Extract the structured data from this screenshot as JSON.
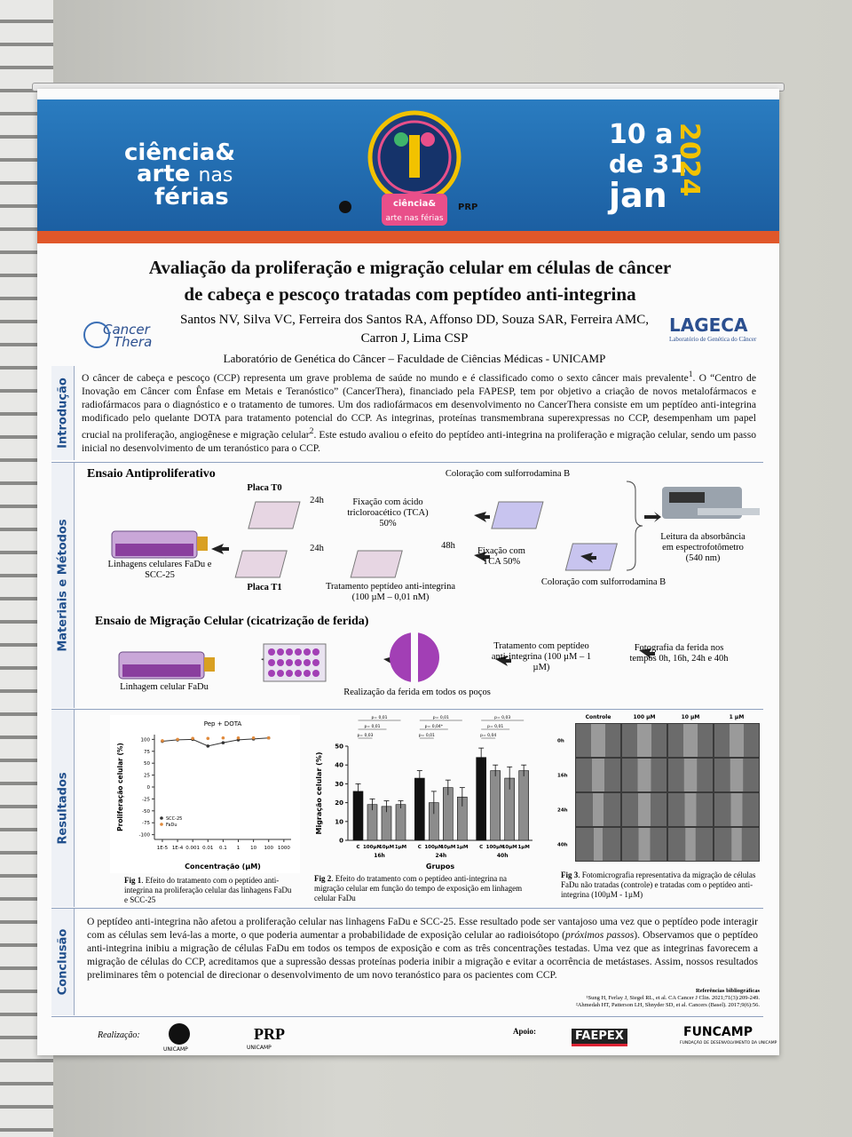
{
  "header": {
    "brand": [
      "ciência&",
      "arte",
      "nas",
      "férias"
    ],
    "dates": {
      "start": "10 a",
      "end": "de 31",
      "month": "jan",
      "year": "2024"
    },
    "partner": "PRP"
  },
  "title": [
    "Avaliação da proliferação e migração celular em células de câncer",
    "de cabeça e pescoço tratadas com peptídeo anti-integrina"
  ],
  "authors": [
    "Santos NV, Silva VC, Ferreira dos Santos RA, Affonso DD, Souza SAR, Ferreira AMC,",
    "Carron J, Lima CSP"
  ],
  "affiliation": "Laboratório de Genética do Câncer – Faculdade de Ciências Médicas - UNICAMP",
  "logos": {
    "left": [
      "Cancer",
      "Thera"
    ],
    "right": "LAGECA",
    "right_sub": "Laboratório de Genética do Câncer"
  },
  "intro": {
    "label": "Introdução",
    "parts": [
      "O câncer de cabeça e pescoço (CCP) representa um grave problema de saúde no mundo e é classificado como o sexto câncer mais prevalente",
      "1",
      ". O “Centro de Inovação em Câncer com Ênfase em Metais e Teranóstico” (CancerThera), financiado pela FAPESP, tem por objetivo a criação de novos metalofármacos e radiofármacos para o diagnóstico e o tratamento de tumores. Um dos radiofármacos em desenvolvimento no CancerThera consiste em um peptídeo anti-integrina modificado pelo quelante DOTA para tratamento potencial do CCP. As integrinas, proteínas transmembrana superexpressas no CCP, desempenham um papel crucial na proliferação, angiogênese e migração celular",
      "2",
      ". Este estudo avaliou o efeito do peptídeo anti-integrina na proliferação e migração celular, sendo um passo inicial no desenvolvimento de um teranóstico para o CCP."
    ]
  },
  "methods": {
    "label": "Materiais e Métodos",
    "antiprolif": {
      "heading": "Ensaio Antiproliferativo",
      "cells": "Linhagens celulares FaDu e SCC-25",
      "plate_t0": "Placa T0",
      "plate_t1": "Placa T1",
      "time_a": "24h",
      "time_b": "24h",
      "time_c": "48h",
      "fix_tca": "Fixação com ácido tricloroacético (TCA) 50%",
      "treatment": "Tratamento peptídeo anti-integrina (100 µM – 0,01 nM)",
      "stain_a": "Coloração com sulforrodamina B",
      "fix_b": "Fixação com TCA 50%",
      "stain_b": "Coloração com sulforrodamina B",
      "reading": "Leitura da absorbância em espectrofotômetro (540 nm)"
    },
    "migration": {
      "heading": "Ensaio de Migração Celular (cicatrização de ferida)",
      "cells": "Linhagem celular FaDu",
      "wound": "Realização da ferida em todos os poços",
      "treatment": "Tratamento com peptídeo anti-integrina (100 µM – 1 µM)",
      "photo": "Fotografia da ferida nos tempos 0h, 16h, 24h e 40h"
    }
  },
  "results": {
    "label": "Resultados",
    "fig1": {
      "title": "Pep + DOTA",
      "ylabel": "Proliferação celular (%)",
      "xlabel": "Concentração (µM)",
      "xscale": "log",
      "xlim": [
        3e-06,
        3000
      ],
      "xticks": [
        {
          "value": 1e-05,
          "label": "1E-5"
        },
        {
          "value": 0.0001,
          "label": "1E-4"
        },
        0.001,
        0.01,
        0.1,
        1,
        10,
        100,
        1000
      ],
      "ylim": [
        -110,
        110
      ],
      "yticks": [
        100,
        75,
        50,
        25,
        0,
        -25,
        -50,
        -75,
        -100
      ],
      "x": [
        1e-05,
        0.0001,
        0.001,
        0.01,
        0.1,
        1,
        10,
        100
      ],
      "series": [
        {
          "name": "SCC-25",
          "color": "#333333",
          "line": true,
          "values": [
            96,
            99,
            100,
            86,
            93,
            99,
            101,
            103
          ]
        },
        {
          "name": "FaDu",
          "color": "#e08a3c",
          "line": false,
          "values": [
            97,
            100,
            102,
            102,
            103,
            103,
            103,
            103
          ]
        }
      ],
      "caption": {
        "label": "Fig 1",
        "text": ". Efeito do tratamento com o peptídeo anti-integrina na proliferação celular das linhagens FaDu e SCC-25"
      }
    },
    "fig2": {
      "ylabel": "Migração celular (%)",
      "xlabel": "Grupos",
      "groups": [
        "16h",
        "24h",
        "40h"
      ],
      "categories": [
        "C",
        "100µM",
        "10µM",
        "1µM"
      ],
      "colors": [
        "#111111",
        "#8c8c8c",
        "#8c8c8c",
        "#8c8c8c"
      ],
      "ylim": [
        0,
        50
      ],
      "yticks": [
        0,
        10,
        20,
        30,
        40,
        50
      ],
      "values": [
        [
          26,
          19,
          18,
          19
        ],
        [
          33,
          20,
          28,
          23
        ],
        [
          44,
          37,
          33,
          37
        ]
      ],
      "errors": [
        [
          4,
          3,
          3,
          2
        ],
        [
          4,
          6,
          4,
          5
        ],
        [
          5,
          3,
          6,
          3
        ]
      ],
      "pvalues": [
        [
          "p= 0,01",
          "p= 0,01",
          "p= 0,03"
        ],
        [
          "p= 0,01",
          "p= 0,04*",
          "p= 0,01"
        ],
        [
          "p= 0,03",
          "p= 0,01",
          "p= 0,04"
        ]
      ],
      "caption": {
        "label": "Fig 2",
        "text": ". Efeito do tratamento com o peptídeo anti-integrina na migração celular em função do tempo de exposição em linhagem celular FaDu"
      }
    },
    "fig3": {
      "columns": [
        "Controle",
        "100 µM",
        "10 µM",
        "1 µM"
      ],
      "rows": [
        "0h",
        "16h",
        "24h",
        "40h"
      ],
      "caption": {
        "label": "Fig 3",
        "text": ". Fotomicrografia representativa da migração de células FaDu não tratadas (controle) e tratadas com o peptídeo anti-integrina (100µM - 1µM)"
      }
    }
  },
  "conclusion": {
    "label": "Conclusão",
    "parts": [
      "O peptídeo anti-integrina não afetou a proliferação celular nas linhagens FaDu e SCC-25. Esse resultado pode ser vantajoso uma vez que o peptídeo pode interagir com as células sem levá-las a morte, o que poderia aumentar a probabilidade de exposição celular ao radioisótopo (",
      "próximos passos",
      "). Observamos que o peptídeo anti-integrina inibiu a migração de células FaDu em todos os tempos de exposição e com as três concentrações testadas. Uma vez que as integrinas favorecem a migração de células do CCP, acreditamos que a supressão dessas proteínas poderia inibir a migração e evitar a ocorrência de metástases. Assim, nossos resultados preliminares têm o potencial de direcionar o desenvolvimento de um novo teranóstico para os pacientes com CCP."
    ]
  },
  "references": {
    "title": "Referências bibliográficas",
    "items": [
      "¹Sung H, Ferlay J, Siegel RL, et al. CA Cancer J Clin. 2021;71(3):209-249.",
      "²Ahmedah HT, Patterson LH, Shnyder SD, et al. Cancers (Basel). 2017;9(6):56."
    ]
  },
  "footer": {
    "realizacao": "Realização:",
    "apoio": "Apoio:",
    "unicamp": "UNICAMP",
    "prp": "PRP",
    "faepex": "FAEPEX",
    "funcamp": "FUNCAMP",
    "funcamp_sub": "FUNDAÇÃO DE DESENVOLVIMENTO DA UNICAMP"
  }
}
